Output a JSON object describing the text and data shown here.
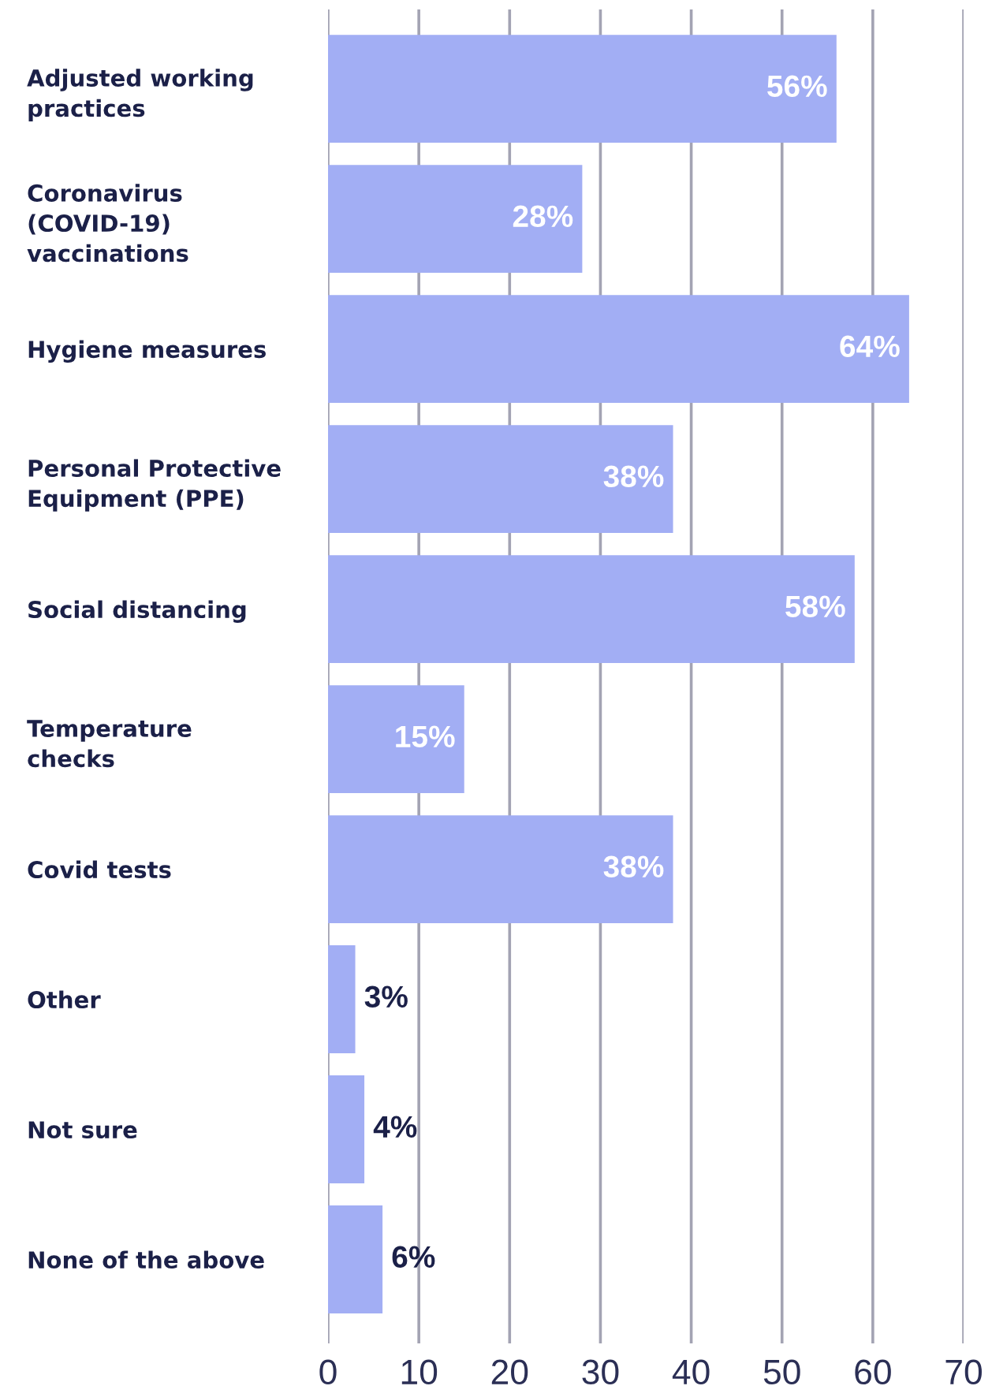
{
  "chart_data": {
    "type": "bar",
    "orientation": "horizontal",
    "categories": [
      "Adjusted working\npractices",
      "Coronavirus\n(COVID-19)\nvaccinations",
      "Hygiene measures",
      "Personal Protective\nEquipment (PPE)",
      "Social distancing",
      "Temperature\nchecks",
      "Covid tests",
      "Other",
      "Not sure",
      "None of the above"
    ],
    "values": [
      56,
      28,
      64,
      38,
      58,
      15,
      38,
      3,
      4,
      6
    ],
    "value_labels": [
      "56%",
      "28%",
      "64%",
      "38%",
      "58%",
      "15%",
      "38%",
      "3%",
      "4%",
      "6%"
    ],
    "color": "#a2aef4",
    "xlim": [
      0,
      70
    ],
    "xticks": [
      0,
      10,
      20,
      30,
      40,
      50,
      60,
      70
    ],
    "grid": "x",
    "legend": false
  }
}
